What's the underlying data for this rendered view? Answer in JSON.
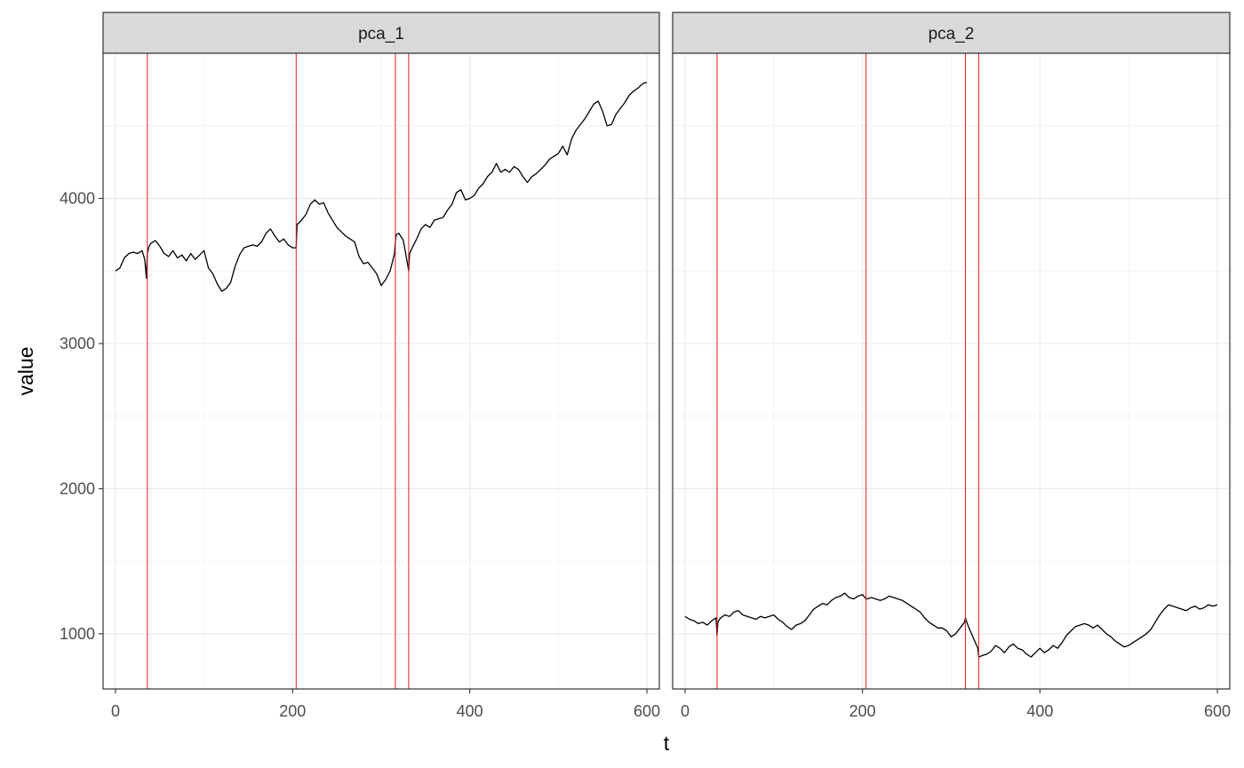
{
  "chart_data": {
    "type": "line",
    "xlabel": "t",
    "ylabel": "value",
    "xlim": [
      -14,
      614
    ],
    "ylim": [
      620,
      5000
    ],
    "x_ticks": [
      0,
      200,
      400,
      600
    ],
    "y_ticks": [
      1000,
      2000,
      3000,
      4000
    ],
    "grid": true,
    "changepoints": [
      36,
      204,
      316,
      331
    ],
    "changepoint_color": "#e41a1c",
    "line_color": "#000000",
    "panels": [
      {
        "name": "pca_1",
        "x": [
          0,
          5,
          10,
          15,
          20,
          25,
          30,
          33,
          35,
          36,
          38,
          40,
          45,
          50,
          55,
          60,
          65,
          70,
          75,
          80,
          85,
          90,
          95,
          100,
          105,
          110,
          115,
          120,
          125,
          130,
          135,
          140,
          145,
          150,
          155,
          160,
          165,
          170,
          175,
          180,
          185,
          190,
          195,
          200,
          204,
          205,
          210,
          215,
          220,
          225,
          230,
          235,
          240,
          245,
          250,
          255,
          260,
          265,
          270,
          275,
          280,
          285,
          290,
          295,
          300,
          305,
          310,
          315,
          316,
          317,
          320,
          325,
          330,
          331,
          332,
          335,
          340,
          345,
          350,
          355,
          360,
          365,
          370,
          375,
          380,
          385,
          390,
          395,
          400,
          405,
          410,
          415,
          420,
          425,
          430,
          435,
          440,
          445,
          450,
          455,
          460,
          465,
          470,
          475,
          480,
          485,
          490,
          495,
          500,
          505,
          510,
          515,
          520,
          525,
          530,
          535,
          540,
          545,
          550,
          555,
          560,
          565,
          570,
          575,
          580,
          585,
          590,
          595,
          600
        ],
        "y": [
          3500,
          3520,
          3590,
          3620,
          3630,
          3620,
          3640,
          3580,
          3450,
          3620,
          3670,
          3690,
          3710,
          3670,
          3620,
          3600,
          3640,
          3590,
          3610,
          3570,
          3620,
          3580,
          3610,
          3640,
          3520,
          3480,
          3410,
          3360,
          3380,
          3420,
          3530,
          3610,
          3660,
          3670,
          3680,
          3670,
          3700,
          3760,
          3790,
          3740,
          3700,
          3720,
          3680,
          3660,
          3660,
          3820,
          3850,
          3890,
          3960,
          3990,
          3960,
          3970,
          3900,
          3850,
          3800,
          3770,
          3740,
          3720,
          3700,
          3600,
          3550,
          3560,
          3520,
          3480,
          3400,
          3440,
          3500,
          3620,
          3700,
          3750,
          3760,
          3710,
          3540,
          3500,
          3620,
          3660,
          3720,
          3790,
          3820,
          3800,
          3850,
          3860,
          3870,
          3920,
          3960,
          4040,
          4060,
          3990,
          4000,
          4020,
          4070,
          4100,
          4150,
          4180,
          4240,
          4180,
          4200,
          4180,
          4220,
          4200,
          4150,
          4110,
          4150,
          4170,
          4200,
          4230,
          4270,
          4290,
          4310,
          4360,
          4300,
          4410,
          4470,
          4510,
          4550,
          4600,
          4650,
          4670,
          4600,
          4500,
          4510,
          4580,
          4620,
          4660,
          4710,
          4740,
          4760,
          4790,
          4800
        ]
      },
      {
        "name": "pca_2",
        "x": [
          0,
          5,
          10,
          15,
          20,
          25,
          30,
          35,
          36,
          37,
          40,
          45,
          50,
          55,
          60,
          65,
          70,
          75,
          80,
          85,
          90,
          95,
          100,
          105,
          110,
          115,
          120,
          125,
          130,
          135,
          140,
          145,
          150,
          155,
          160,
          165,
          170,
          175,
          180,
          185,
          190,
          195,
          200,
          204,
          205,
          210,
          215,
          220,
          225,
          230,
          235,
          240,
          245,
          250,
          255,
          260,
          265,
          270,
          275,
          280,
          285,
          290,
          295,
          300,
          305,
          310,
          315,
          316,
          317,
          320,
          325,
          330,
          331,
          335,
          340,
          345,
          350,
          355,
          360,
          365,
          370,
          375,
          380,
          385,
          390,
          395,
          400,
          405,
          410,
          415,
          420,
          425,
          430,
          435,
          440,
          445,
          450,
          455,
          460,
          465,
          470,
          475,
          480,
          485,
          490,
          495,
          500,
          505,
          510,
          515,
          520,
          525,
          530,
          535,
          540,
          545,
          550,
          555,
          560,
          565,
          570,
          575,
          580,
          585,
          590,
          595,
          600
        ],
        "y": [
          1120,
          1100,
          1090,
          1070,
          1080,
          1060,
          1090,
          1110,
          990,
          1080,
          1110,
          1130,
          1120,
          1150,
          1160,
          1130,
          1120,
          1110,
          1100,
          1120,
          1110,
          1120,
          1130,
          1100,
          1080,
          1050,
          1030,
          1060,
          1070,
          1090,
          1130,
          1170,
          1190,
          1210,
          1200,
          1230,
          1250,
          1260,
          1280,
          1250,
          1240,
          1260,
          1270,
          1240,
          1240,
          1250,
          1240,
          1230,
          1240,
          1260,
          1250,
          1240,
          1230,
          1210,
          1190,
          1170,
          1150,
          1110,
          1080,
          1060,
          1040,
          1040,
          1020,
          980,
          1000,
          1040,
          1080,
          1110,
          1090,
          1040,
          970,
          900,
          840,
          850,
          860,
          880,
          920,
          900,
          870,
          910,
          930,
          900,
          890,
          860,
          840,
          870,
          900,
          870,
          890,
          920,
          900,
          940,
          990,
          1020,
          1050,
          1060,
          1070,
          1060,
          1040,
          1060,
          1030,
          1000,
          980,
          950,
          930,
          910,
          920,
          940,
          960,
          980,
          1000,
          1030,
          1080,
          1130,
          1170,
          1200,
          1190,
          1180,
          1170,
          1160,
          1180,
          1190,
          1170,
          1180,
          1200,
          1190,
          1200
        ]
      }
    ]
  }
}
